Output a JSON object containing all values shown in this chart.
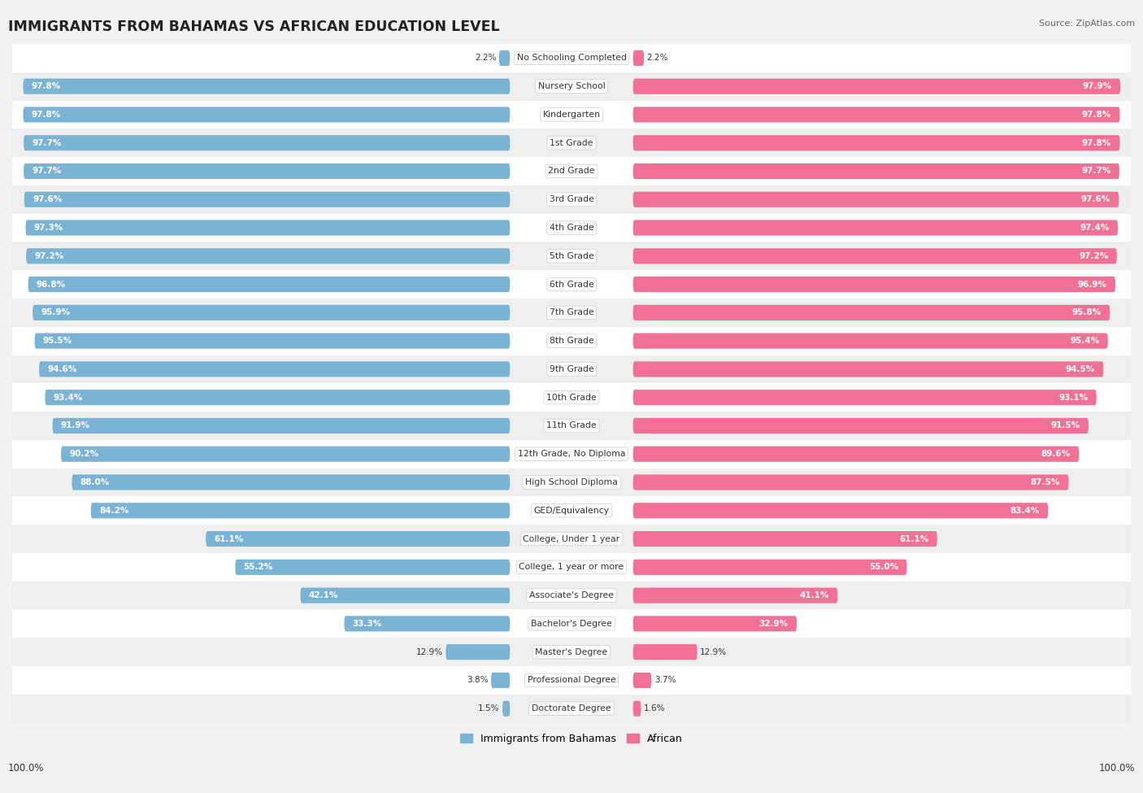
{
  "title": "IMMIGRANTS FROM BAHAMAS VS AFRICAN EDUCATION LEVEL",
  "source": "Source: ZipAtlas.com",
  "categories": [
    "No Schooling Completed",
    "Nursery School",
    "Kindergarten",
    "1st Grade",
    "2nd Grade",
    "3rd Grade",
    "4th Grade",
    "5th Grade",
    "6th Grade",
    "7th Grade",
    "8th Grade",
    "9th Grade",
    "10th Grade",
    "11th Grade",
    "12th Grade, No Diploma",
    "High School Diploma",
    "GED/Equivalency",
    "College, Under 1 year",
    "College, 1 year or more",
    "Associate's Degree",
    "Bachelor's Degree",
    "Master's Degree",
    "Professional Degree",
    "Doctorate Degree"
  ],
  "bahamas_values": [
    2.2,
    97.8,
    97.8,
    97.7,
    97.7,
    97.6,
    97.3,
    97.2,
    96.8,
    95.9,
    95.5,
    94.6,
    93.4,
    91.9,
    90.2,
    88.0,
    84.2,
    61.1,
    55.2,
    42.1,
    33.3,
    12.9,
    3.8,
    1.5
  ],
  "african_values": [
    2.2,
    97.9,
    97.8,
    97.8,
    97.7,
    97.6,
    97.4,
    97.2,
    96.9,
    95.8,
    95.4,
    94.5,
    93.1,
    91.5,
    89.6,
    87.5,
    83.4,
    61.1,
    55.0,
    41.1,
    32.9,
    12.9,
    3.7,
    1.6
  ],
  "bahamas_color": "#7ab3d4",
  "african_color": "#f07096",
  "bg_color": "#f2f2f2",
  "row_colors": [
    "#ffffff",
    "#efefef"
  ],
  "label_color": "#333333",
  "value_color": "#333333"
}
